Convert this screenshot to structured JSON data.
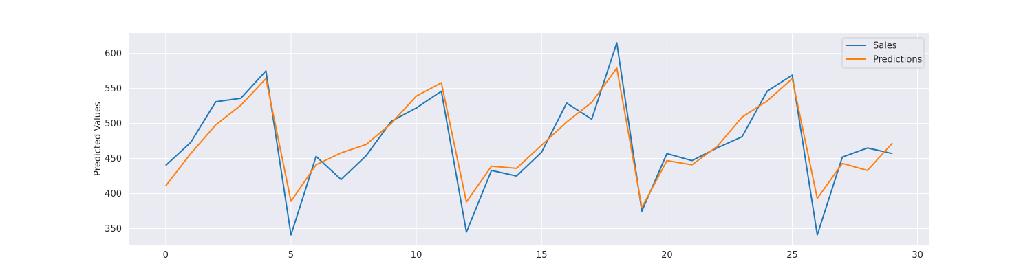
{
  "chart_data": {
    "type": "line",
    "title": "",
    "xlabel": "",
    "ylabel": "Predicted Values",
    "xlim": [
      -1.45,
      30.45
    ],
    "ylim": [
      327,
      629
    ],
    "xticks": [
      0,
      5,
      10,
      15,
      20,
      25,
      30
    ],
    "yticks": [
      350,
      400,
      450,
      500,
      550,
      600
    ],
    "grid": true,
    "background": "#eaeaf2",
    "grid_color": "#ffffff",
    "legend_position": "top-right",
    "x": [
      0,
      1,
      2,
      3,
      4,
      5,
      6,
      7,
      8,
      9,
      10,
      11,
      12,
      13,
      14,
      15,
      16,
      17,
      18,
      19,
      20,
      21,
      22,
      23,
      24,
      25,
      26,
      27,
      28,
      29
    ],
    "series": [
      {
        "name": "Sales",
        "color": "#1f77b4",
        "values": [
          440,
          473,
          531,
          536,
          575,
          341,
          453,
          420,
          454,
          503,
          522,
          546,
          345,
          433,
          425,
          459,
          529,
          506,
          615,
          375,
          457,
          447,
          465,
          481,
          546,
          569,
          341,
          452,
          465,
          457
        ]
      },
      {
        "name": "Predictions",
        "color": "#ff7f0e",
        "values": [
          411,
          457,
          498,
          526,
          564,
          389,
          441,
          458,
          470,
          500,
          539,
          558,
          388,
          439,
          436,
          469,
          502,
          530,
          579,
          380,
          447,
          441,
          467,
          509,
          532,
          564,
          393,
          443,
          433,
          472
        ]
      }
    ]
  }
}
